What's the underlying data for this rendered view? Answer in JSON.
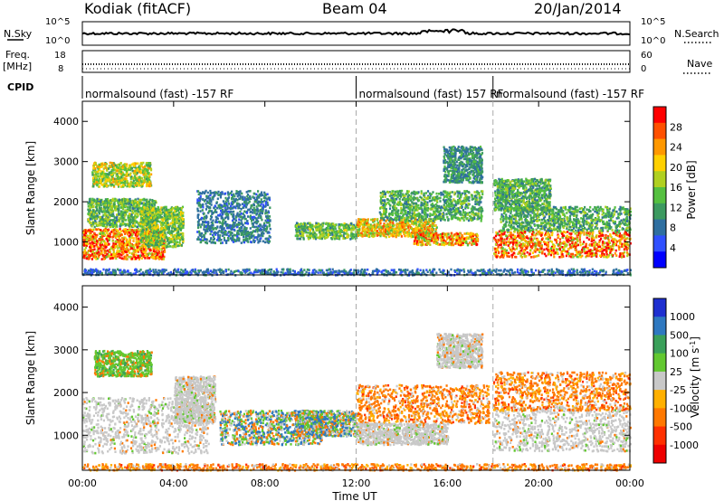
{
  "header": {
    "radar": "Kodiak (fitACF)",
    "beam": "Beam 04",
    "date": "20/Jan/2014"
  },
  "panels": {
    "nsky_label": "N.Sky",
    "nsky_ticks": [
      "10^5",
      "10^0"
    ],
    "nsearch_label": "N.Search",
    "nsearch_ticks": [
      "10^5",
      "10^0"
    ],
    "freq_label": "Freq.",
    "freq_unit": "[MHz]",
    "freq_ticks": [
      "18",
      "8"
    ],
    "nave_label": "Nave",
    "nave_ticks": [
      "60",
      "0"
    ],
    "cpid_label": "CPID",
    "cpid_segments": [
      {
        "label": "normalsound (fast) -157 RF",
        "start_hour": 0
      },
      {
        "label": "normalsound (fast) 157 RF",
        "start_hour": 12
      },
      {
        "label": "normalsound (fast) -157 RF",
        "start_hour": 18
      }
    ]
  },
  "chart_data": [
    {
      "type": "heatmap",
      "title": "",
      "xlabel": "Time UT",
      "ylabel": "Slant Range [km]",
      "x_ticks": [
        "00:00",
        "04:00",
        "08:00",
        "12:00",
        "16:00",
        "20:00",
        "00:00"
      ],
      "y_ticks": [
        "1000",
        "2000",
        "3000",
        "4000"
      ],
      "xlim": [
        0,
        24
      ],
      "ylim": [
        180,
        4500
      ],
      "colorbar": {
        "label": "Power [dB]",
        "ticks": [
          "4",
          "8",
          "12",
          "16",
          "20",
          "24",
          "28"
        ],
        "range": [
          0,
          30
        ],
        "colors": [
          "#0000ff",
          "#3050ff",
          "#2f6fa0",
          "#3c9a60",
          "#55c040",
          "#b0d020",
          "#ffd000",
          "#ff9800",
          "#ff5000",
          "#ff0000"
        ]
      }
    },
    {
      "type": "heatmap",
      "title": "",
      "xlabel": "Time UT",
      "ylabel": "Slant Range [km]",
      "x_ticks": [
        "00:00",
        "04:00",
        "08:00",
        "12:00",
        "16:00",
        "20:00",
        "00:00"
      ],
      "y_ticks": [
        "1000",
        "2000",
        "3000",
        "4000"
      ],
      "xlim": [
        0,
        24
      ],
      "ylim": [
        180,
        4500
      ],
      "colorbar": {
        "label": "Velocity [m s^-1]",
        "ticks": [
          "1000",
          "500",
          "100",
          "25",
          "-25",
          "-100",
          "-500",
          "-1000"
        ],
        "colors": [
          "#1e2fd0",
          "#2e78c0",
          "#3aa05a",
          "#62c830",
          "#c8c8c8",
          "#ffb000",
          "#ff7800",
          "#ff3000",
          "#ee0000"
        ]
      }
    }
  ],
  "scatter_regions": {
    "power": [
      {
        "t0": 0.0,
        "t1": 3.6,
        "r0": 600,
        "r1": 1350,
        "hi": 0.95
      },
      {
        "t0": 0.2,
        "t1": 3.2,
        "r0": 1400,
        "r1": 2100,
        "hi": 0.55
      },
      {
        "t0": 0.4,
        "t1": 3.0,
        "r0": 2400,
        "r1": 3000,
        "hi": 0.7
      },
      {
        "t0": 2.5,
        "t1": 4.4,
        "r0": 900,
        "r1": 1900,
        "hi": 0.6
      },
      {
        "t0": 5.0,
        "t1": 8.2,
        "r0": 1000,
        "r1": 2300,
        "hi": 0.35
      },
      {
        "t0": 9.3,
        "t1": 12.0,
        "r0": 1100,
        "r1": 1500,
        "hi": 0.55
      },
      {
        "t0": 12.0,
        "t1": 15.5,
        "r0": 1150,
        "r1": 1600,
        "hi": 0.8
      },
      {
        "t0": 13.0,
        "t1": 17.5,
        "r0": 1550,
        "r1": 2300,
        "hi": 0.5
      },
      {
        "t0": 14.5,
        "t1": 17.3,
        "r0": 950,
        "r1": 1250,
        "hi": 0.9
      },
      {
        "t0": 15.8,
        "t1": 17.5,
        "r0": 2500,
        "r1": 3400,
        "hi": 0.4
      },
      {
        "t0": 18.0,
        "t1": 24.0,
        "r0": 650,
        "r1": 1300,
        "hi": 0.95
      },
      {
        "t0": 18.3,
        "t1": 24.0,
        "r0": 1300,
        "r1": 1900,
        "hi": 0.5
      },
      {
        "t0": 18.0,
        "t1": 20.5,
        "r0": 1800,
        "r1": 2600,
        "hi": 0.5
      },
      {
        "t0": 0.0,
        "t1": 24.0,
        "r0": 200,
        "r1": 350,
        "hi": 0.3
      }
    ],
    "velocity": [
      {
        "t0": 0.0,
        "t1": 5.5,
        "r0": 600,
        "r1": 1900,
        "mode": "grey"
      },
      {
        "t0": 0.5,
        "t1": 3.0,
        "r0": 2400,
        "r1": 3000,
        "mode": "green"
      },
      {
        "t0": 4.0,
        "t1": 5.8,
        "r0": 1300,
        "r1": 2400,
        "mode": "grey"
      },
      {
        "t0": 6.0,
        "t1": 10.5,
        "r0": 800,
        "r1": 1600,
        "mode": "mixed"
      },
      {
        "t0": 9.3,
        "t1": 12.0,
        "r0": 1000,
        "r1": 1600,
        "mode": "mixed"
      },
      {
        "t0": 12.0,
        "t1": 17.8,
        "r0": 1300,
        "r1": 2200,
        "mode": "orange"
      },
      {
        "t0": 12.0,
        "t1": 16.0,
        "r0": 800,
        "r1": 1300,
        "mode": "grey"
      },
      {
        "t0": 15.5,
        "t1": 17.5,
        "r0": 2600,
        "r1": 3400,
        "mode": "grey"
      },
      {
        "t0": 18.0,
        "t1": 24.0,
        "r0": 650,
        "r1": 1700,
        "mode": "grey"
      },
      {
        "t0": 18.0,
        "t1": 24.0,
        "r0": 1600,
        "r1": 2500,
        "mode": "orange"
      },
      {
        "t0": 0.0,
        "t1": 24.0,
        "r0": 200,
        "r1": 350,
        "mode": "orange"
      }
    ]
  }
}
